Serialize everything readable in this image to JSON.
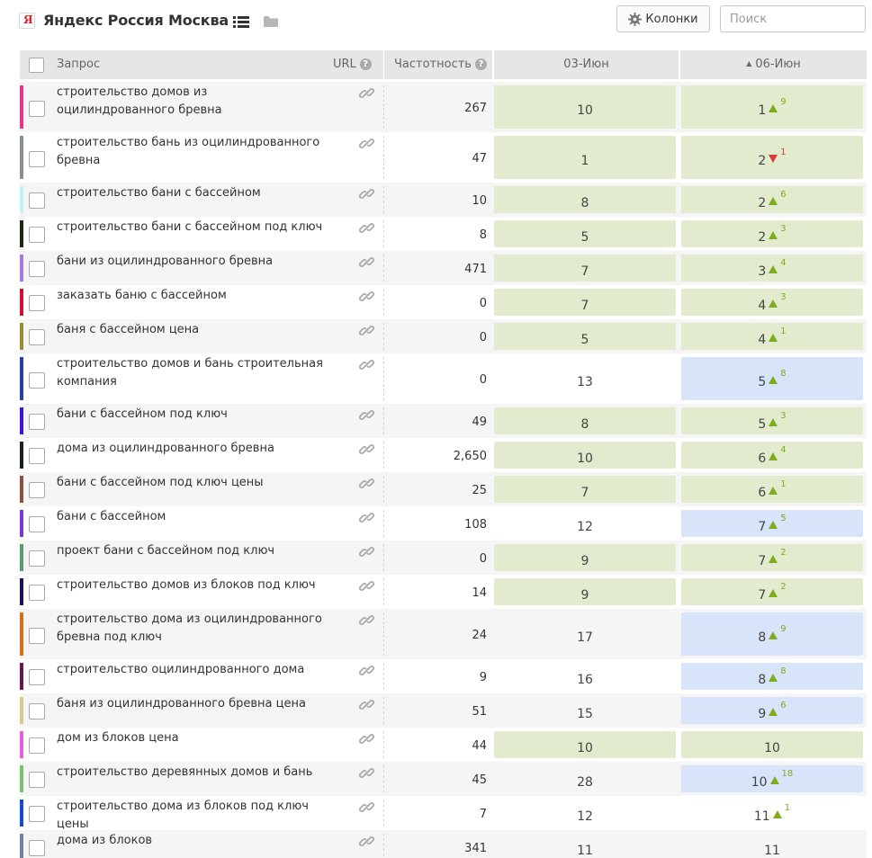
{
  "header": {
    "logo_letter": "Я",
    "title": "Яндекс Россия Москва",
    "columns_button": "Колонки",
    "search_placeholder": "Поиск"
  },
  "table": {
    "columns": {
      "query": "Запрос",
      "url": "URL",
      "frequency": "Частотность",
      "date1": "03-Июн",
      "date2": "06-Июн",
      "sort_indicator": "▲"
    },
    "rows": [
      {
        "query": "строительство домов из оцилиндрованного бревна",
        "freq": "267",
        "d1": "10",
        "d2": "1",
        "change": "9",
        "dir": "up",
        "c1": "green",
        "c2": "green",
        "color": "#e8348c"
      },
      {
        "query": "строительство бань из оцилиндрованного бревна",
        "freq": "47",
        "d1": "1",
        "d2": "2",
        "change": "1",
        "dir": "down",
        "c1": "green",
        "c2": "green",
        "color": "#8a8f9a"
      },
      {
        "query": "строительство бани с бассейном",
        "freq": "10",
        "d1": "8",
        "d2": "2",
        "change": "6",
        "dir": "up",
        "c1": "green",
        "c2": "green",
        "color": "#bff3f3"
      },
      {
        "query": "строительство бани с бассейном под ключ",
        "freq": "8",
        "d1": "5",
        "d2": "2",
        "change": "3",
        "dir": "up",
        "c1": "green",
        "c2": "green",
        "color": "#1e2a10"
      },
      {
        "query": "бани из оцилиндрованного бревна",
        "freq": "471",
        "d1": "7",
        "d2": "3",
        "change": "4",
        "dir": "up",
        "c1": "green",
        "c2": "green",
        "color": "#a77ae0"
      },
      {
        "query": "заказать баню с бассейном",
        "freq": "0",
        "d1": "7",
        "d2": "4",
        "change": "3",
        "dir": "up",
        "c1": "green",
        "c2": "green",
        "color": "#d0103a"
      },
      {
        "query": "баня с бассейном цена",
        "freq": "0",
        "d1": "5",
        "d2": "4",
        "change": "1",
        "dir": "up",
        "c1": "green",
        "c2": "green",
        "color": "#9a8c3a"
      },
      {
        "query": "строительство домов и бань строительная компания",
        "freq": "0",
        "d1": "13",
        "d2": "5",
        "change": "8",
        "dir": "up",
        "c1": "none",
        "c2": "blue",
        "color": "#2a3fa8"
      },
      {
        "query": "бани с бассейном под ключ",
        "freq": "49",
        "d1": "8",
        "d2": "5",
        "change": "3",
        "dir": "up",
        "c1": "green",
        "c2": "green",
        "color": "#3b12d8"
      },
      {
        "query": "дома из оцилиндрованного бревна",
        "freq": "2,650",
        "d1": "10",
        "d2": "6",
        "change": "4",
        "dir": "up",
        "c1": "green",
        "c2": "green",
        "color": "#16241c"
      },
      {
        "query": "бани с бассейном под ключ цены",
        "freq": "25",
        "d1": "7",
        "d2": "6",
        "change": "1",
        "dir": "up",
        "c1": "green",
        "c2": "green",
        "color": "#8a5040"
      },
      {
        "query": "бани с бассейном",
        "freq": "108",
        "d1": "12",
        "d2": "7",
        "change": "5",
        "dir": "up",
        "c1": "none",
        "c2": "blue",
        "color": "#7a3ad8"
      },
      {
        "query": "проект бани с бассейном под ключ",
        "freq": "0",
        "d1": "9",
        "d2": "7",
        "change": "2",
        "dir": "up",
        "c1": "green",
        "c2": "green",
        "color": "#5a9a70"
      },
      {
        "query": "строительство домов из блоков под ключ",
        "freq": "14",
        "d1": "9",
        "d2": "7",
        "change": "2",
        "dir": "up",
        "c1": "green",
        "c2": "green",
        "color": "#14145a"
      },
      {
        "query": "строительство дома из оцилиндрованного бревна под ключ",
        "freq": "24",
        "d1": "17",
        "d2": "8",
        "change": "9",
        "dir": "up",
        "c1": "none",
        "c2": "blue",
        "color": "#d4701a"
      },
      {
        "query": "строительство оцилиндрованного дома",
        "freq": "9",
        "d1": "16",
        "d2": "8",
        "change": "8",
        "dir": "up",
        "c1": "none",
        "c2": "blue",
        "color": "#6a1450"
      },
      {
        "query": "баня из оцилиндрованного бревна цена",
        "freq": "51",
        "d1": "15",
        "d2": "9",
        "change": "6",
        "dir": "up",
        "c1": "none",
        "c2": "blue",
        "color": "#d8c890"
      },
      {
        "query": "дом из блоков цена",
        "freq": "44",
        "d1": "10",
        "d2": "10",
        "change": "",
        "dir": "none",
        "c1": "green",
        "c2": "green",
        "color": "#e860e0"
      },
      {
        "query": "строительство деревянных домов и бань",
        "freq": "45",
        "d1": "28",
        "d2": "10",
        "change": "18",
        "dir": "up",
        "c1": "none",
        "c2": "blue",
        "color": "#7ac070"
      },
      {
        "query": "строительство дома из блоков под ключ цены",
        "freq": "7",
        "d1": "12",
        "d2": "11",
        "change": "1",
        "dir": "up",
        "c1": "none",
        "c2": "none",
        "color": "#1a4ad0"
      },
      {
        "query": "дома из блоков",
        "freq": "341",
        "d1": "11",
        "d2": "11",
        "change": "",
        "dir": "none",
        "c1": "none",
        "c2": "none",
        "color": "#7080a0"
      }
    ]
  },
  "colors": {
    "green_cell": "#e2ebce",
    "blue_cell": "#d7e4fa",
    "up": "#7dac1d",
    "down": "#d93b3b",
    "header_bg": "#e6e6e6"
  }
}
